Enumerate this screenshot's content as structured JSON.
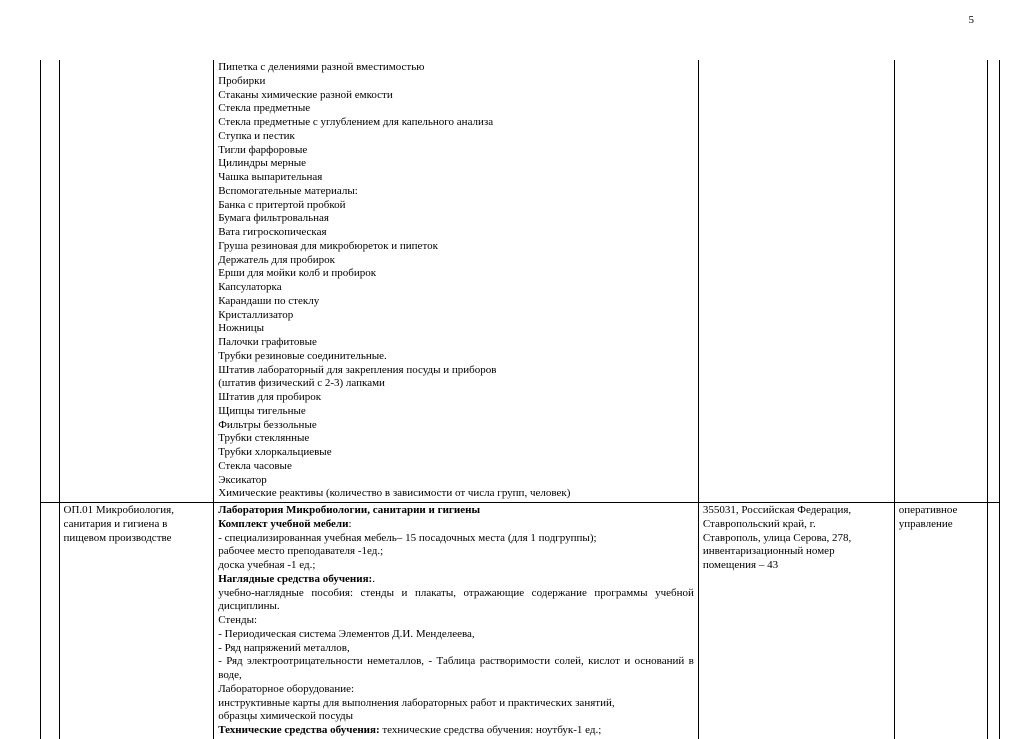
{
  "page_number": "5",
  "row1_lines": [
    "Пипетка с делениями разной вместимостью",
    "Пробирки",
    "Стаканы химические разной емкости",
    "Стекла предметные",
    "Стекла предметные с углублением для капельного анализа",
    "Ступка и пестик",
    "Тигли фарфоровые",
    "Цилиндры мерные",
    "Чашка выпарительная",
    "Вспомогательные материалы:",
    "Банка с притертой пробкой",
    "Бумага фильтровальная",
    "Вата гигроскопическая",
    "Груша резиновая для микробюреток и пипеток",
    "Держатель для пробирок",
    "Ерши для мойки колб и пробирок",
    "Капсулаторка",
    "Карандаши по стеклу",
    "Кристаллизатор",
    "Ножницы",
    "Палочки графитовые",
    "Трубки резиновые соединительные.",
    "Штатив лабораторный для закрепления посуды и приборов",
    "(штатив физический с 2-3) лапками",
    "Штатив для пробирок",
    "Щипцы тигельные",
    "Фильтры беззольные",
    "Трубки стеклянные",
    "Трубки хлоркальциевые",
    "Стекла часовые",
    "Эксикатор",
    "Химические реактивы (количество в зависимости от числа групп, человек)"
  ],
  "row2": {
    "col1_lines": [
      "ОП.01 Микробиология,",
      "санитария и гигиена в",
      "пищевом производстве"
    ],
    "col3_lines": [
      "355031, Российская Федерация,",
      "Ставропольский край, г.",
      "Ставрополь, улица Серова, 278,",
      "инвентаризационный номер",
      "помещения – 43"
    ],
    "col4_lines": [
      "оперативное",
      "управление"
    ],
    "col2": {
      "l1_b": " Лаборатория Микробиологии, санитарии и гигиены",
      "l2_b": "Комплект учебной мебели",
      "l2_t": ":",
      "l3": "- специализированная учебная мебель– 15 посадочных места (для 1 подгруппы);",
      "l4": "рабочее место преподавателя -1ед.;",
      "l5": "доска учебная -1 ед.;",
      "l6_b": "Наглядные средства обучения:",
      "l6_t": ".",
      "l7": "учебно-наглядные пособия: стенды и плакаты, отражающие содержание программы учебной дисциплины.",
      "l8": "Стенды:",
      "l9": "-  Периодическая система Элементов Д.И. Менделеева,",
      "l10": "- Ряд напряжений металлов,",
      "l11": "- Ряд электроотрицательности неметаллов, - Таблица растворимости солей, кислот и оснований в воде,",
      "l12": "Лабораторное оборудование:",
      "l13": " инструктивные карты для выполнения лабораторных работ и практических занятий,",
      "l14": "образцы химической посуды",
      "l15_b": "Технические средства обучения:",
      "l15_t": " технические средства обучения: ноутбук-1 ед.;"
    }
  }
}
